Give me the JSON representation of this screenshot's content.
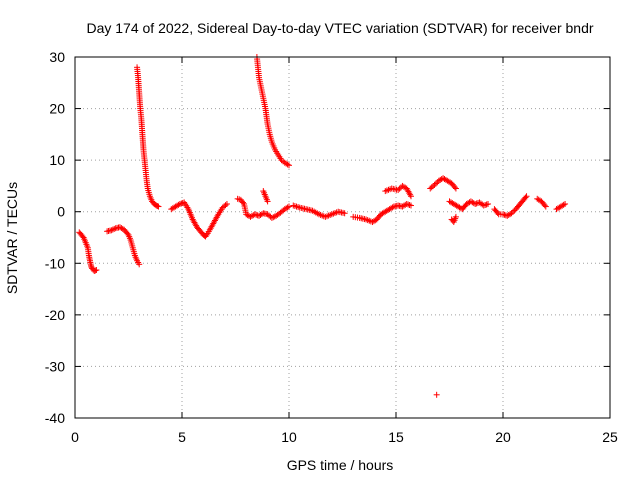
{
  "chart_data": {
    "type": "scatter",
    "title": "Day 174 of 2022, Sidereal Day-to-day VTEC variation (SDTVAR) for receiver bndr",
    "xlabel": "GPS time / hours",
    "ylabel": "SDTVAR / TECUs",
    "xlim": [
      0,
      25
    ],
    "ylim": [
      -40,
      30
    ],
    "xticks": [
      0,
      5,
      10,
      15,
      20,
      25
    ],
    "yticks": [
      -40,
      -30,
      -20,
      -10,
      0,
      10,
      20,
      30
    ],
    "xtick_labels": [
      "0",
      "5",
      "10",
      "15",
      "20",
      "25"
    ],
    "ytick_labels": [
      "-40",
      "-30",
      "-20",
      "-10",
      "0",
      "10",
      "20",
      "30"
    ],
    "grid": true,
    "marker": "+",
    "color": "#ff0000",
    "series": [
      {
        "name": "bndr",
        "segments": [
          [
            [
              0.2,
              -4
            ],
            [
              0.3,
              -4.5
            ],
            [
              0.4,
              -5
            ],
            [
              0.5,
              -6
            ],
            [
              0.6,
              -7
            ],
            [
              0.65,
              -8.5
            ],
            [
              0.7,
              -9.5
            ],
            [
              0.75,
              -10.5
            ],
            [
              0.8,
              -11
            ],
            [
              0.9,
              -11.5
            ],
            [
              1.0,
              -11.3
            ]
          ],
          [
            [
              1.5,
              -3.8
            ],
            [
              1.7,
              -3.6
            ],
            [
              1.9,
              -3.2
            ],
            [
              2.1,
              -3.0
            ],
            [
              2.3,
              -3.5
            ],
            [
              2.5,
              -4.5
            ],
            [
              2.6,
              -5.5
            ],
            [
              2.7,
              -7
            ],
            [
              2.8,
              -8.5
            ],
            [
              2.9,
              -9.5
            ],
            [
              3.0,
              -10.2
            ]
          ],
          [
            [
              2.9,
              28
            ],
            [
              2.95,
              26
            ],
            [
              3.0,
              23
            ],
            [
              3.05,
              20
            ],
            [
              3.1,
              18
            ],
            [
              3.15,
              15
            ],
            [
              3.2,
              12
            ],
            [
              3.25,
              10
            ],
            [
              3.3,
              8
            ],
            [
              3.35,
              6
            ],
            [
              3.4,
              4.5
            ],
            [
              3.5,
              3
            ],
            [
              3.6,
              2
            ],
            [
              3.7,
              1.5
            ],
            [
              3.8,
              1.2
            ],
            [
              3.9,
              1
            ]
          ],
          [
            [
              4.5,
              0.5
            ],
            [
              4.7,
              1
            ],
            [
              4.9,
              1.5
            ],
            [
              5.1,
              1.8
            ],
            [
              5.3,
              0.5
            ],
            [
              5.5,
              -1.5
            ],
            [
              5.7,
              -3
            ],
            [
              5.9,
              -4
            ],
            [
              6.0,
              -4.5
            ],
            [
              6.1,
              -4.8
            ],
            [
              6.2,
              -4.2
            ],
            [
              6.3,
              -3.5
            ],
            [
              6.5,
              -2
            ],
            [
              6.7,
              -0.5
            ],
            [
              6.9,
              0.8
            ],
            [
              7.1,
              1.5
            ]
          ],
          [
            [
              7.6,
              2.5
            ],
            [
              7.75,
              2.3
            ],
            [
              7.9,
              1.5
            ],
            [
              8.0,
              -0.5
            ],
            [
              8.2,
              -1
            ],
            [
              8.4,
              -0.5
            ],
            [
              8.6,
              -0.8
            ],
            [
              8.8,
              -0.3
            ],
            [
              9.0,
              -0.5
            ],
            [
              9.2,
              -1.2
            ],
            [
              9.4,
              -0.8
            ],
            [
              9.6,
              -0.2
            ],
            [
              9.8,
              0.5
            ],
            [
              10.0,
              1
            ]
          ],
          [
            [
              8.8,
              4
            ],
            [
              8.9,
              3
            ],
            [
              9.0,
              2
            ]
          ],
          [
            [
              8.5,
              30
            ],
            [
              8.55,
              28
            ],
            [
              8.6,
              26
            ],
            [
              8.7,
              24
            ],
            [
              8.8,
              22
            ],
            [
              8.9,
              20
            ],
            [
              9.0,
              17
            ],
            [
              9.1,
              15
            ],
            [
              9.2,
              13.5
            ],
            [
              9.35,
              12
            ],
            [
              9.5,
              11
            ],
            [
              9.65,
              10
            ],
            [
              9.8,
              9.5
            ],
            [
              10.0,
              9
            ]
          ],
          [
            [
              10.2,
              1.2
            ],
            [
              10.5,
              0.8
            ],
            [
              10.8,
              0.5
            ],
            [
              11.1,
              0.2
            ],
            [
              11.4,
              -0.5
            ],
            [
              11.7,
              -1
            ],
            [
              12.0,
              -0.5
            ],
            [
              12.3,
              0
            ],
            [
              12.6,
              -0.3
            ]
          ],
          [
            [
              13.0,
              -1
            ],
            [
              13.3,
              -1.2
            ],
            [
              13.6,
              -1.5
            ],
            [
              13.9,
              -2
            ],
            [
              14.1,
              -1.5
            ],
            [
              14.3,
              -0.5
            ],
            [
              14.5,
              0
            ],
            [
              14.7,
              0.5
            ],
            [
              14.9,
              1
            ],
            [
              15.1,
              1.2
            ],
            [
              15.3,
              1
            ],
            [
              15.5,
              1.5
            ],
            [
              15.7,
              1.2
            ]
          ],
          [
            [
              14.5,
              4
            ],
            [
              14.8,
              4.5
            ],
            [
              15.1,
              4.2
            ],
            [
              15.3,
              5
            ],
            [
              15.5,
              4.5
            ],
            [
              15.7,
              3
            ]
          ],
          [
            [
              16.6,
              4.5
            ],
            [
              16.8,
              5.2
            ],
            [
              17.0,
              6
            ],
            [
              17.2,
              6.5
            ],
            [
              17.4,
              6
            ],
            [
              17.6,
              5.5
            ],
            [
              17.8,
              4.5
            ]
          ],
          [
            [
              16.9,
              -35.5
            ]
          ],
          [
            [
              17.6,
              -1.5
            ],
            [
              17.7,
              -2
            ],
            [
              17.8,
              -1
            ]
          ],
          [
            [
              17.5,
              2
            ],
            [
              17.7,
              1.5
            ],
            [
              17.9,
              1
            ],
            [
              18.1,
              0.5
            ],
            [
              18.3,
              1.5
            ],
            [
              18.5,
              2
            ],
            [
              18.7,
              1.5
            ],
            [
              18.9,
              1.8
            ],
            [
              19.1,
              1.2
            ],
            [
              19.3,
              1.5
            ]
          ],
          [
            [
              19.6,
              0.5
            ],
            [
              19.8,
              -0.5
            ],
            [
              20.0,
              -0.5
            ],
            [
              20.2,
              -0.8
            ],
            [
              20.4,
              -0.3
            ],
            [
              20.6,
              0.5
            ],
            [
              20.8,
              1.5
            ],
            [
              21.0,
              2.5
            ],
            [
              21.1,
              3
            ]
          ],
          [
            [
              21.6,
              2.5
            ],
            [
              21.8,
              2
            ],
            [
              22.0,
              1
            ]
          ],
          [
            [
              22.5,
              0.5
            ],
            [
              22.7,
              1
            ],
            [
              22.9,
              1.5
            ]
          ]
        ]
      }
    ]
  }
}
